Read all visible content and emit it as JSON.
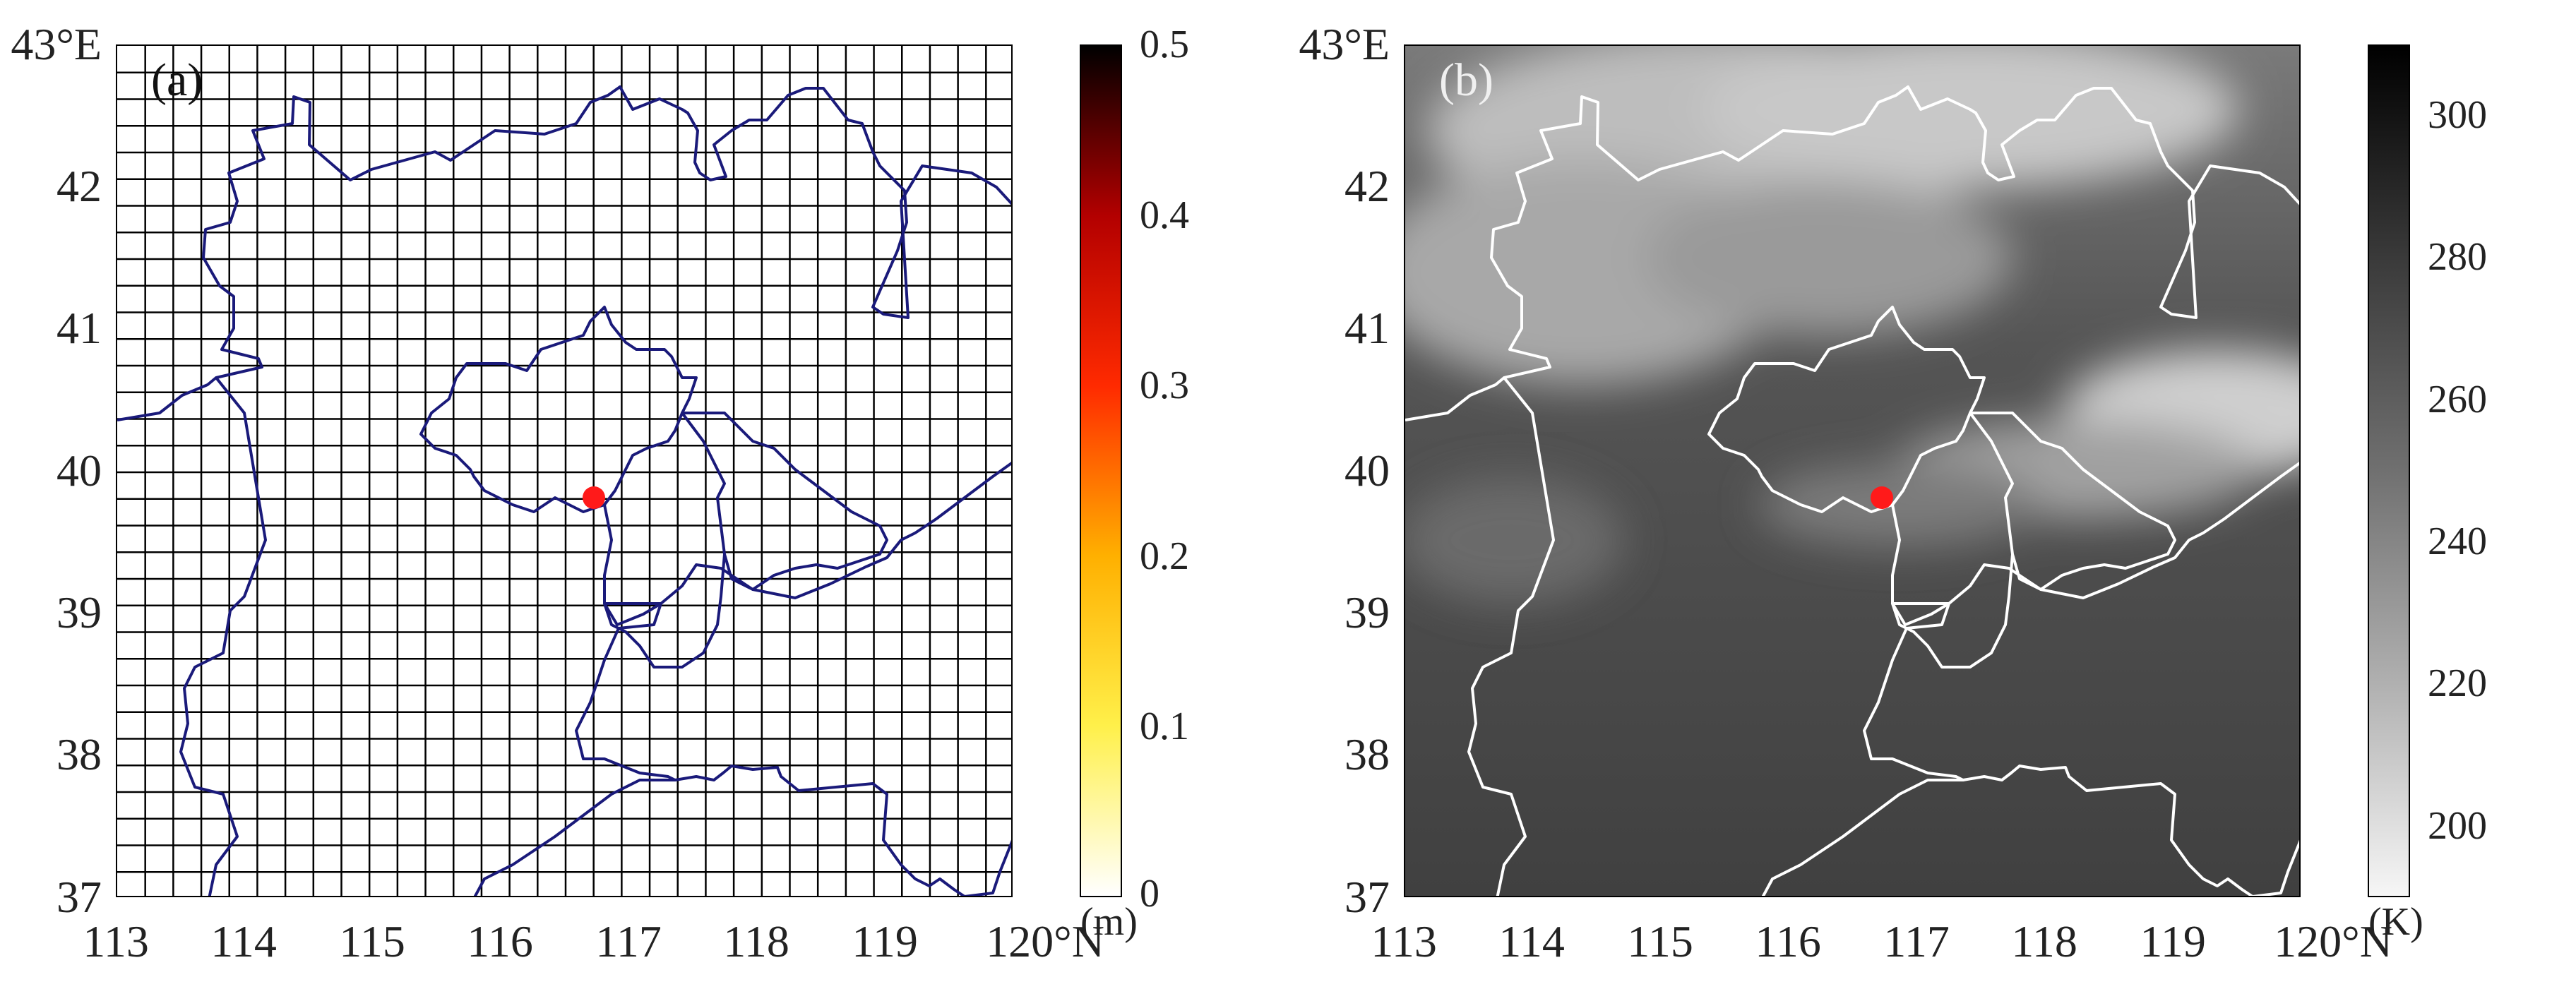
{
  "panels": [
    {
      "id": "a",
      "label": "(a)",
      "y_ticks": [
        "43°E",
        "42",
        "41",
        "40",
        "39",
        "38",
        "37"
      ],
      "x_ticks": [
        "113",
        "114",
        "115",
        "116",
        "117",
        "118",
        "119",
        "120°N"
      ],
      "colorbar": {
        "unit": "(m)",
        "ticks": [
          "0.5",
          "0.4",
          "0.3",
          "0.2",
          "0.1",
          "0"
        ],
        "range": [
          0,
          0.5
        ],
        "colormap": [
          "#ffffff",
          "#fff04a",
          "#ffb000",
          "#ff2a00",
          "#b30000",
          "#000000"
        ]
      },
      "map": {
        "grid": true,
        "grid_rows": 32,
        "grid_cols": 32,
        "boundary_color": "#1a1a7a",
        "background": "#ffffff"
      },
      "station": {
        "lon": 116.72,
        "lat": 39.82,
        "color": "#ff1a1a"
      }
    },
    {
      "id": "b",
      "label": "(b)",
      "y_ticks": [
        "43°E",
        "42",
        "41",
        "40",
        "39",
        "38",
        "37"
      ],
      "x_ticks": [
        "113",
        "114",
        "115",
        "116",
        "117",
        "118",
        "119",
        "120°N"
      ],
      "colorbar": {
        "unit": "(K)",
        "ticks": [
          "300",
          "280",
          "260",
          "240",
          "220",
          "200"
        ],
        "range": [
          190,
          310
        ],
        "colormap": [
          "#f6f6f6",
          "#b0b0b0",
          "#707070",
          "#3a3a3a",
          "#000000"
        ]
      },
      "map": {
        "grid": false,
        "boundary_color": "#ffffff",
        "background": "#4a4a4a"
      },
      "station": {
        "lon": 116.72,
        "lat": 39.82,
        "color": "#ff1a1a"
      }
    }
  ]
}
